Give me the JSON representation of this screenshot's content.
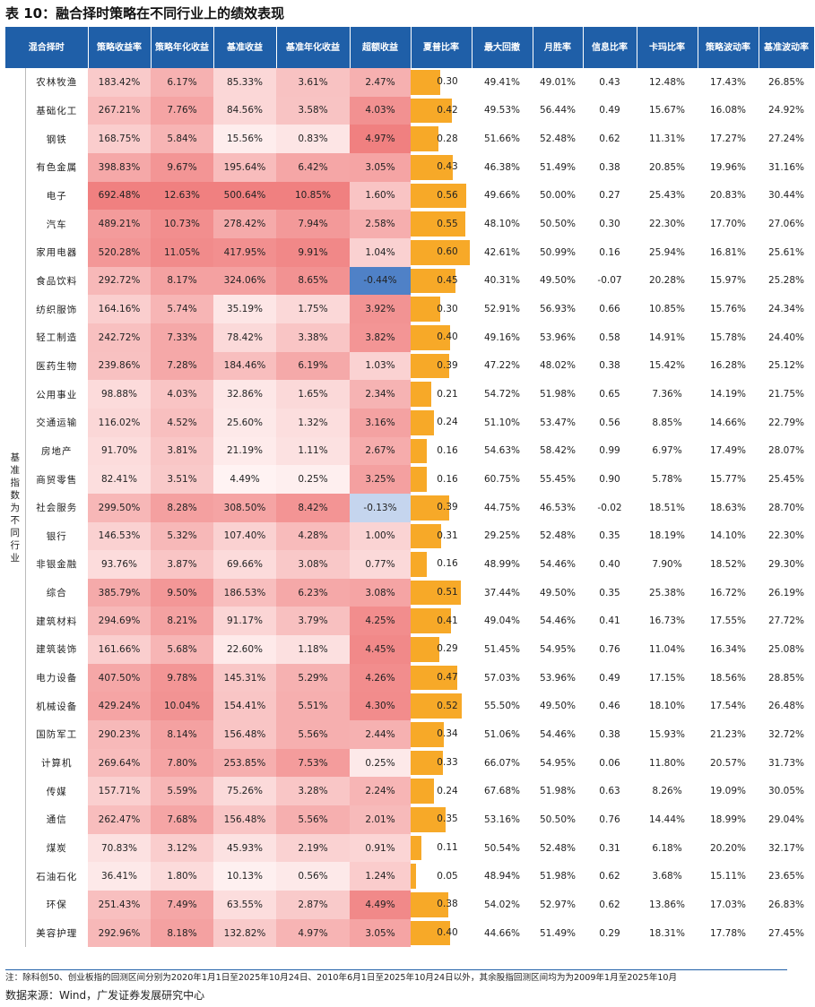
{
  "title": "表 10：融合择时策略在不同行业上的绩效表现",
  "headers": [
    "混合择时",
    "策略收益率",
    "策略年化收益",
    "基准收益",
    "基准年化收益",
    "超额收益",
    "夏普比率",
    "最大回撤",
    "月胜率",
    "信息比率",
    "卡玛比率",
    "策略波动率",
    "基准波动率"
  ],
  "group_label": "基准指数为不同行业",
  "rows": [
    [
      "农林牧渔",
      "183.42%",
      "6.17%",
      "85.33%",
      "3.61%",
      "2.47%",
      "0.30",
      "49.41%",
      "49.01%",
      "0.43",
      "12.48%",
      "17.43%",
      "26.85%"
    ],
    [
      "基础化工",
      "267.21%",
      "7.76%",
      "84.56%",
      "3.58%",
      "4.03%",
      "0.42",
      "49.53%",
      "56.44%",
      "0.49",
      "15.67%",
      "16.08%",
      "24.92%"
    ],
    [
      "钢铁",
      "168.75%",
      "5.84%",
      "15.56%",
      "0.83%",
      "4.97%",
      "0.28",
      "51.66%",
      "52.48%",
      "0.62",
      "11.31%",
      "17.27%",
      "27.24%"
    ],
    [
      "有色金属",
      "398.83%",
      "9.67%",
      "195.64%",
      "6.42%",
      "3.05%",
      "0.43",
      "46.38%",
      "51.49%",
      "0.38",
      "20.85%",
      "19.96%",
      "31.16%"
    ],
    [
      "电子",
      "692.48%",
      "12.63%",
      "500.64%",
      "10.85%",
      "1.60%",
      "0.56",
      "49.66%",
      "50.00%",
      "0.27",
      "25.43%",
      "20.83%",
      "30.44%"
    ],
    [
      "汽车",
      "489.21%",
      "10.73%",
      "278.42%",
      "7.94%",
      "2.58%",
      "0.55",
      "48.10%",
      "50.50%",
      "0.30",
      "22.30%",
      "17.70%",
      "27.06%"
    ],
    [
      "家用电器",
      "520.28%",
      "11.05%",
      "417.95%",
      "9.91%",
      "1.04%",
      "0.60",
      "42.61%",
      "50.99%",
      "0.16",
      "25.94%",
      "16.81%",
      "25.61%"
    ],
    [
      "食品饮料",
      "292.72%",
      "8.17%",
      "324.06%",
      "8.65%",
      "-0.44%",
      "0.45",
      "40.31%",
      "49.50%",
      "-0.07",
      "20.28%",
      "15.97%",
      "25.28%"
    ],
    [
      "纺织服饰",
      "164.16%",
      "5.74%",
      "35.19%",
      "1.75%",
      "3.92%",
      "0.30",
      "52.91%",
      "56.93%",
      "0.66",
      "10.85%",
      "15.76%",
      "24.34%"
    ],
    [
      "轻工制造",
      "242.72%",
      "7.33%",
      "78.42%",
      "3.38%",
      "3.82%",
      "0.40",
      "49.16%",
      "53.96%",
      "0.58",
      "14.91%",
      "15.78%",
      "24.40%"
    ],
    [
      "医药生物",
      "239.86%",
      "7.28%",
      "184.46%",
      "6.19%",
      "1.03%",
      "0.39",
      "47.22%",
      "48.02%",
      "0.38",
      "15.42%",
      "16.28%",
      "25.12%"
    ],
    [
      "公用事业",
      "98.88%",
      "4.03%",
      "32.86%",
      "1.65%",
      "2.34%",
      "0.21",
      "54.72%",
      "51.98%",
      "0.65",
      "7.36%",
      "14.19%",
      "21.75%"
    ],
    [
      "交通运输",
      "116.02%",
      "4.52%",
      "25.60%",
      "1.32%",
      "3.16%",
      "0.24",
      "51.10%",
      "53.47%",
      "0.56",
      "8.85%",
      "14.66%",
      "22.79%"
    ],
    [
      "房地产",
      "91.70%",
      "3.81%",
      "21.19%",
      "1.11%",
      "2.67%",
      "0.16",
      "54.63%",
      "58.42%",
      "0.99",
      "6.97%",
      "17.49%",
      "28.07%"
    ],
    [
      "商贸零售",
      "82.41%",
      "3.51%",
      "4.49%",
      "0.25%",
      "3.25%",
      "0.16",
      "60.75%",
      "55.45%",
      "0.90",
      "5.78%",
      "15.77%",
      "25.45%"
    ],
    [
      "社会服务",
      "299.50%",
      "8.28%",
      "308.50%",
      "8.42%",
      "-0.13%",
      "0.39",
      "44.75%",
      "46.53%",
      "-0.02",
      "18.51%",
      "18.63%",
      "28.70%"
    ],
    [
      "银行",
      "146.53%",
      "5.32%",
      "107.40%",
      "4.28%",
      "1.00%",
      "0.31",
      "29.25%",
      "52.48%",
      "0.35",
      "18.19%",
      "14.10%",
      "22.30%"
    ],
    [
      "非银金融",
      "93.76%",
      "3.87%",
      "69.66%",
      "3.08%",
      "0.77%",
      "0.16",
      "48.99%",
      "54.46%",
      "0.40",
      "7.90%",
      "18.52%",
      "29.30%"
    ],
    [
      "综合",
      "385.79%",
      "9.50%",
      "186.53%",
      "6.23%",
      "3.08%",
      "0.51",
      "37.44%",
      "49.50%",
      "0.35",
      "25.38%",
      "16.72%",
      "26.19%"
    ],
    [
      "建筑材料",
      "294.69%",
      "8.21%",
      "91.17%",
      "3.79%",
      "4.25%",
      "0.41",
      "49.04%",
      "54.46%",
      "0.41",
      "16.73%",
      "17.55%",
      "27.72%"
    ],
    [
      "建筑装饰",
      "161.66%",
      "5.68%",
      "22.60%",
      "1.18%",
      "4.45%",
      "0.29",
      "51.45%",
      "54.95%",
      "0.76",
      "11.04%",
      "16.34%",
      "25.08%"
    ],
    [
      "电力设备",
      "407.50%",
      "9.78%",
      "145.31%",
      "5.29%",
      "4.26%",
      "0.47",
      "57.03%",
      "53.96%",
      "0.49",
      "17.15%",
      "18.56%",
      "28.85%"
    ],
    [
      "机械设备",
      "429.24%",
      "10.04%",
      "154.41%",
      "5.51%",
      "4.30%",
      "0.52",
      "55.50%",
      "49.50%",
      "0.46",
      "18.10%",
      "17.54%",
      "26.48%"
    ],
    [
      "国防军工",
      "290.23%",
      "8.14%",
      "156.48%",
      "5.56%",
      "2.44%",
      "0.34",
      "51.06%",
      "54.46%",
      "0.38",
      "15.93%",
      "21.23%",
      "32.72%"
    ],
    [
      "计算机",
      "269.64%",
      "7.80%",
      "253.85%",
      "7.53%",
      "0.25%",
      "0.33",
      "66.07%",
      "54.95%",
      "0.06",
      "11.80%",
      "20.57%",
      "31.73%"
    ],
    [
      "传媒",
      "157.71%",
      "5.59%",
      "75.26%",
      "3.28%",
      "2.24%",
      "0.24",
      "67.68%",
      "51.98%",
      "0.63",
      "8.26%",
      "19.09%",
      "30.05%"
    ],
    [
      "通信",
      "262.47%",
      "7.68%",
      "156.48%",
      "5.56%",
      "2.01%",
      "0.35",
      "53.16%",
      "50.50%",
      "0.76",
      "14.44%",
      "18.99%",
      "29.04%"
    ],
    [
      "煤炭",
      "70.83%",
      "3.12%",
      "45.93%",
      "2.19%",
      "0.91%",
      "0.11",
      "50.54%",
      "52.48%",
      "0.31",
      "6.18%",
      "20.20%",
      "32.17%"
    ],
    [
      "石油石化",
      "36.41%",
      "1.80%",
      "10.13%",
      "0.56%",
      "1.24%",
      "0.05",
      "48.94%",
      "51.98%",
      "0.62",
      "3.68%",
      "15.11%",
      "23.65%"
    ],
    [
      "环保",
      "251.43%",
      "7.49%",
      "63.55%",
      "2.87%",
      "4.49%",
      "0.38",
      "54.02%",
      "52.97%",
      "0.62",
      "13.86%",
      "17.03%",
      "26.83%"
    ],
    [
      "美容护理",
      "292.96%",
      "8.18%",
      "132.82%",
      "4.97%",
      "3.05%",
      "0.40",
      "44.66%",
      "51.49%",
      "0.29",
      "18.31%",
      "17.78%",
      "27.45%"
    ]
  ],
  "note": "注：除科创50、创业板指的回测区间分别为2020年1月1日至2025年10月24日、2010年6月1日至2025年10月24日以外，其余股指回测区间均为为2009年1月至2025年10月",
  "source": "数据来源：Wind，广发证券发展研究中心",
  "colors": {
    "header_bg": "#1f5fa8",
    "sharpe_bar": "#f7a928",
    "heat_high": "#f08080",
    "heat_negative_strong": "#4f81c7",
    "heat_negative_light": "#c5d5ee"
  }
}
